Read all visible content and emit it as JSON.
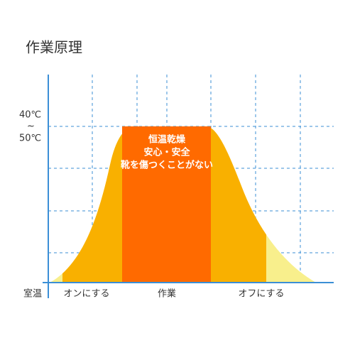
{
  "title": "作業原理",
  "temperature": {
    "high": "40℃",
    "tilde": "~",
    "low": "50℃"
  },
  "center_text": [
    "恒温乾燥",
    "安心・安全",
    "靴を傷つくことがない"
  ],
  "x_labels": {
    "start": "室温",
    "phases": [
      "オンにする",
      "作業",
      "オフにする"
    ]
  }
}
